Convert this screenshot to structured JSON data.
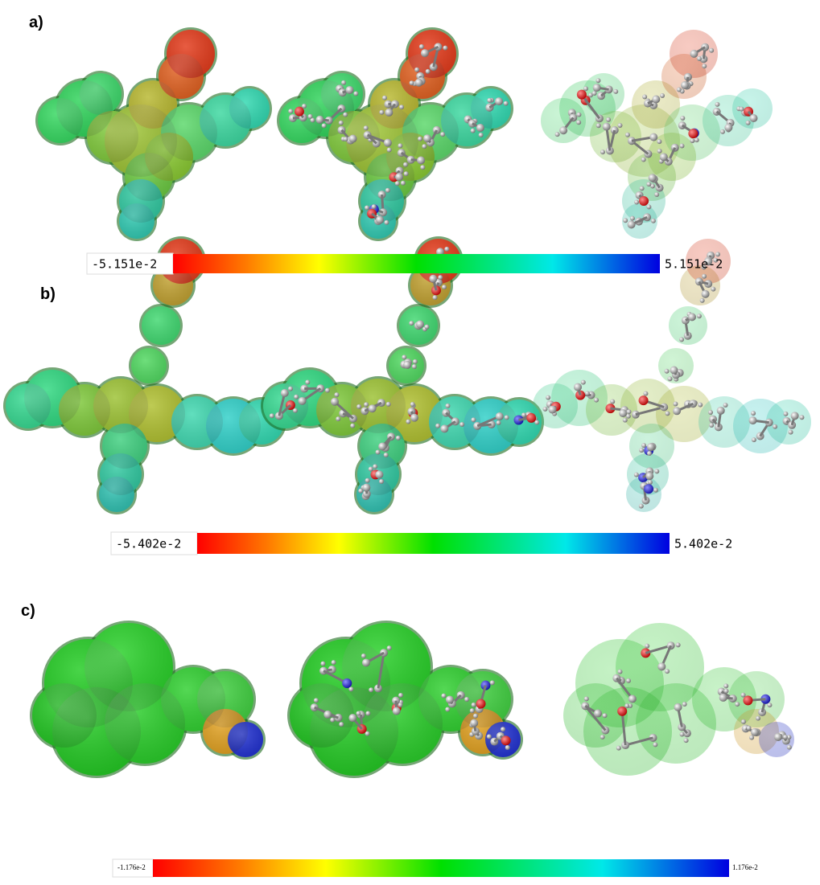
{
  "panels": [
    {
      "label": "a)",
      "scale_min": "-5.151e-2",
      "scale_max": "5.151e-2"
    },
    {
      "label": "b)",
      "scale_min": "-5.402e-2",
      "scale_max": "5.402e-2"
    },
    {
      "label": "c)",
      "scale_min": "-1.176e-2",
      "scale_max": "1.176e-2"
    }
  ]
}
